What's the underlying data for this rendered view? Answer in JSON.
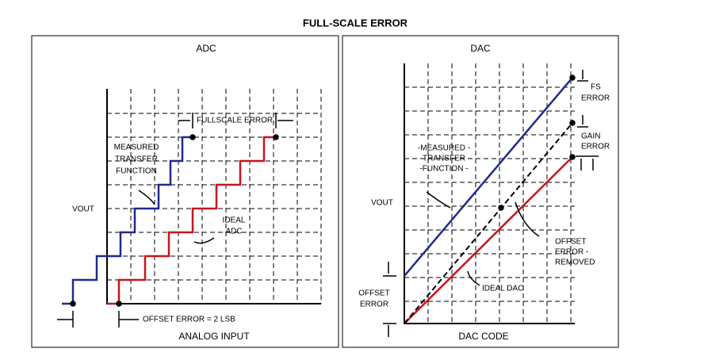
{
  "header": {
    "title": "FULL-SCALE ERROR"
  },
  "adc": {
    "title": "ADC",
    "fullscale_error": "FULLSCALE ERROR",
    "measured": [
      "MEASURED",
      "TRANSFER",
      "FUNCTION"
    ],
    "vout": "VOUT",
    "ideal": [
      "IDEAL",
      "ADC"
    ],
    "offset": "OFFSET ERROR = 2 LSB",
    "x_label": "ANALOG INPUT"
  },
  "dac": {
    "title": "DAC",
    "fs_error": [
      "FS",
      "ERROR"
    ],
    "gain_error": [
      "GAIN",
      "ERROR"
    ],
    "measured": [
      "-MEASURED -",
      "TRANSFER",
      "-FUNCTION -"
    ],
    "vout": "VOUT",
    "offset_removed": [
      "OFFSET",
      "ERROR -",
      "REMOVED"
    ],
    "ideal": "IDEAL DAC",
    "offset": [
      "OFFSET",
      "ERROR"
    ],
    "x_label": "DAC CODE"
  }
}
